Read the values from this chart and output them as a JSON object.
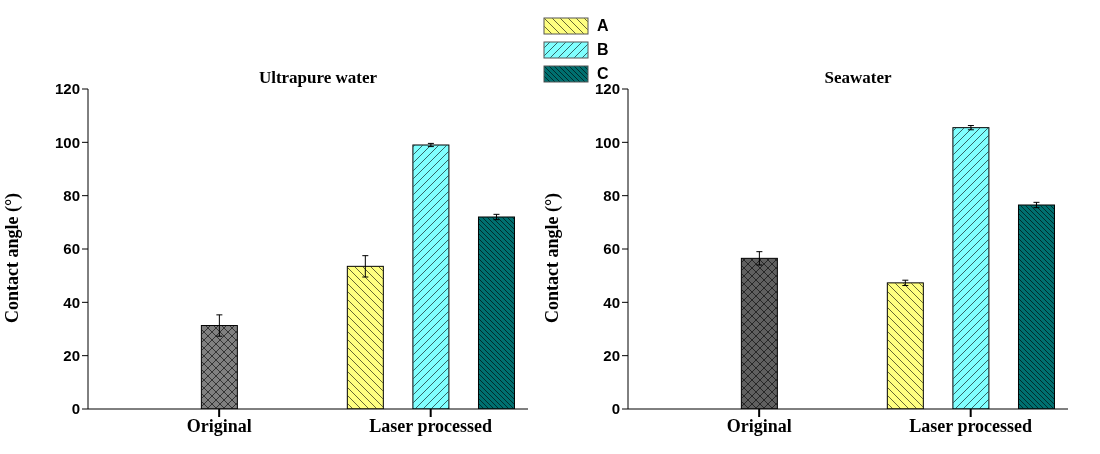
{
  "chart_data": [
    {
      "type": "bar",
      "title": "Ultrapure water",
      "ylabel": "Contact angle (°)",
      "categories": [
        "Original",
        "Laser processed"
      ],
      "legend": "top",
      "ylim": [
        0,
        120
      ],
      "yticks": [
        0,
        20,
        40,
        60,
        80,
        100,
        120
      ],
      "series": [
        {
          "color": "#808080",
          "values": [
            31.3,
            null
          ],
          "errors": [
            4,
            null
          ]
        },
        {
          "name": "A",
          "color": "#ffff80",
          "values": [
            null,
            53.5
          ],
          "errors": [
            null,
            4
          ]
        },
        {
          "name": "B",
          "color": "#80ffff",
          "values": [
            null,
            99
          ],
          "errors": [
            null,
            0.6
          ]
        },
        {
          "name": "C",
          "color": "#007070",
          "values": [
            null,
            72
          ],
          "errors": [
            null,
            1
          ]
        }
      ]
    },
    {
      "type": "bar",
      "title": "Seawater",
      "ylabel": "Contact angle (°)",
      "categories": [
        "Original",
        "Laser processed"
      ],
      "ylim": [
        0,
        120
      ],
      "yticks": [
        0,
        20,
        40,
        60,
        80,
        100,
        120
      ],
      "series": [
        {
          "color": "#606060",
          "values": [
            56.5,
            null
          ],
          "errors": [
            2.5,
            null
          ]
        },
        {
          "name": "A",
          "color": "#ffff80",
          "values": [
            null,
            47.3
          ],
          "errors": [
            null,
            1
          ]
        },
        {
          "name": "B",
          "color": "#80ffff",
          "values": [
            null,
            105.5
          ],
          "errors": [
            null,
            0.8
          ]
        },
        {
          "name": "C",
          "color": "#007070",
          "values": [
            null,
            76.5
          ],
          "errors": [
            null,
            1
          ]
        }
      ]
    }
  ]
}
